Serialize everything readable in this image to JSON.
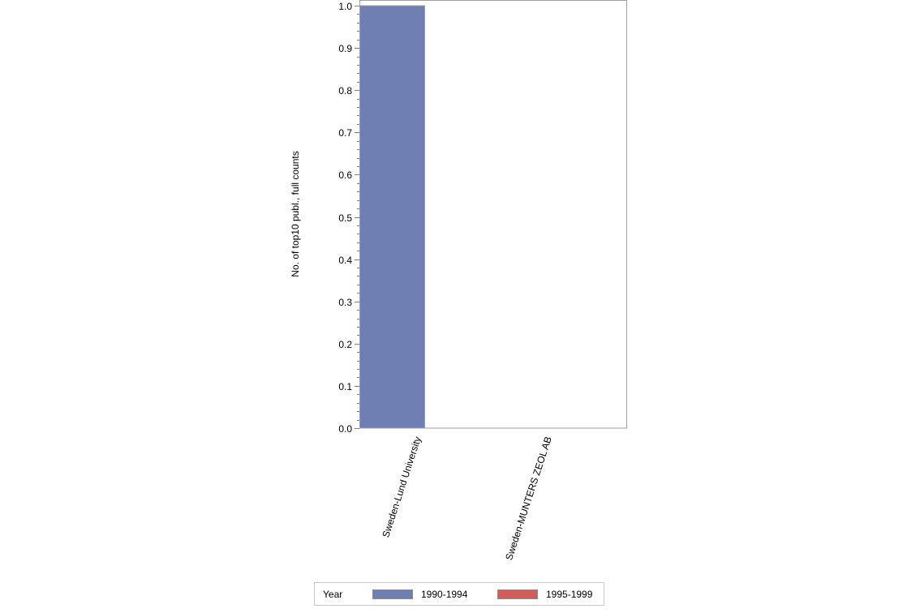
{
  "chart_data": {
    "type": "bar",
    "title": "",
    "xlabel": "",
    "ylabel": "No. of top10 publ., full counts",
    "ylim": [
      0,
      1.0
    ],
    "yticks": [
      "0.0",
      "0.1",
      "0.2",
      "0.3",
      "0.4",
      "0.5",
      "0.6",
      "0.7",
      "0.8",
      "0.9",
      "1.0"
    ],
    "grid": false,
    "categories": [
      "Sweden-Lund University",
      "Sweden-MUNTERS ZEOL AB"
    ],
    "series": [
      {
        "name": "1990-1994",
        "color": "#6f7fb3",
        "values": [
          1.0,
          0.0
        ]
      },
      {
        "name": "1995-1999",
        "color": "#d05c5c",
        "values": [
          0.0,
          0.0
        ]
      }
    ],
    "legend": {
      "title": "Year",
      "position": "bottom",
      "entries": [
        "1990-1994",
        "1995-1999"
      ]
    }
  },
  "legend": {
    "title": "Year",
    "items": [
      {
        "label": "1990-1994",
        "color": "#6f7fb3"
      },
      {
        "label": "1995-1999",
        "color": "#d05c5c"
      }
    ]
  }
}
